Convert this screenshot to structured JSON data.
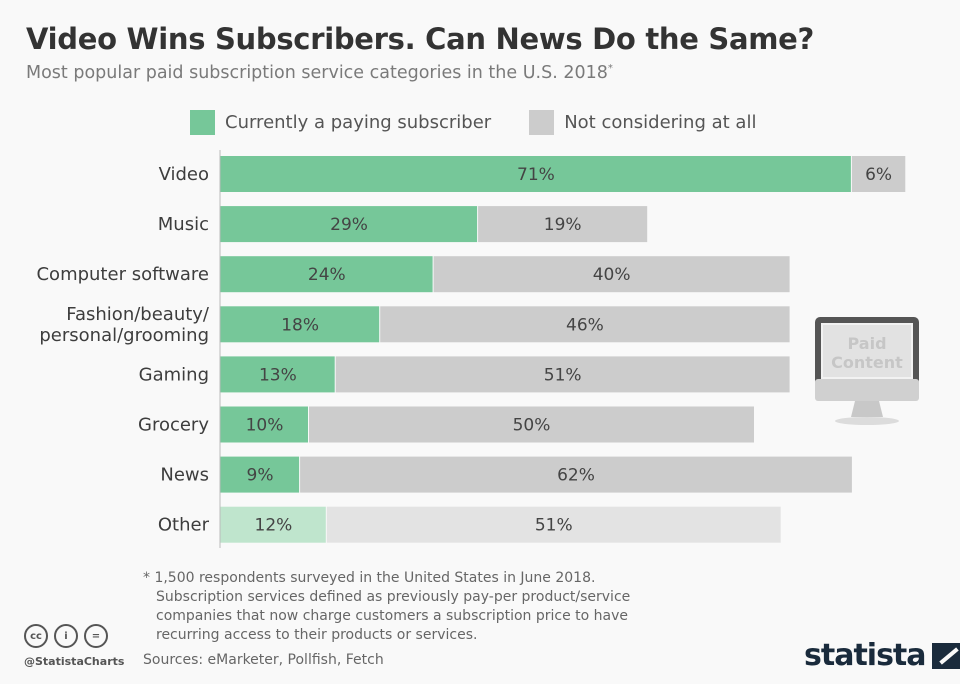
{
  "title": "Video Wins Subscribers. Can News Do the Same?",
  "subtitle": "Most popular paid subscription service categories in the U.S. 2018",
  "subtitle_mark": "*",
  "icon_text": {
    "line1": "Paid",
    "line2": "Content"
  },
  "footnote": [
    "* 1,500 respondents surveyed in the United States in June 2018.",
    "Subscription services defined as previously pay-per product/service",
    "companies that now charge customers a subscription price to have",
    "recurring access to their products or services."
  ],
  "sources": "Sources: eMarketer, Pollfish, Fetch",
  "handle": "@StatistaCharts",
  "cc_icons": [
    "cc",
    "i",
    "="
  ],
  "brand": "statista",
  "colors": {
    "green": "#76c799",
    "grey": "#cccccc",
    "green_light": "#bfe5cd",
    "grey_light": "#e3e3e3"
  },
  "chart_data": {
    "type": "bar",
    "orientation": "horizontal",
    "stacked": true,
    "categories": [
      "Video",
      "Music",
      "Computer software",
      "Fashion/beauty/\npersonal/grooming",
      "Gaming",
      "Grocery",
      "News",
      "Other"
    ],
    "series": [
      {
        "name": "Currently a paying subscriber",
        "values": [
          71,
          29,
          24,
          18,
          13,
          10,
          9,
          12
        ]
      },
      {
        "name": "Not considering at all",
        "values": [
          6,
          19,
          40,
          46,
          51,
          50,
          62,
          51
        ]
      }
    ],
    "unit": "%",
    "legend": "top",
    "grid": false
  }
}
